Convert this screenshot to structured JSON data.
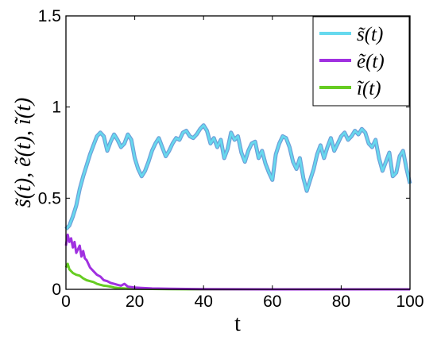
{
  "chart_data": {
    "type": "line",
    "xlabel": "t",
    "ylabel": "s̃(t), ẽ(t), ĩ(t)",
    "xlim": [
      0,
      100
    ],
    "ylim": [
      0,
      1.5
    ],
    "x_ticks": [
      "0",
      "20",
      "40",
      "60",
      "80",
      "100"
    ],
    "y_ticks": [
      "0",
      "0.5",
      "1",
      "1.5"
    ],
    "grid": false,
    "legend_position": "top-right",
    "series": [
      {
        "name": "s̃(t)",
        "color": "#66d9ee",
        "shadow_color": "#6f9fd8",
        "x": [
          0,
          1,
          2,
          3,
          4,
          5,
          6,
          7,
          8,
          9,
          10,
          11,
          12,
          13,
          14,
          15,
          16,
          17,
          18,
          19,
          20,
          21,
          22,
          23,
          24,
          25,
          26,
          27,
          28,
          29,
          30,
          31,
          32,
          33,
          34,
          35,
          36,
          37,
          38,
          39,
          40,
          41,
          42,
          43,
          44,
          45,
          46,
          47,
          48,
          49,
          50,
          51,
          52,
          53,
          54,
          55,
          56,
          57,
          58,
          59,
          60,
          61,
          62,
          63,
          64,
          65,
          66,
          67,
          68,
          69,
          70,
          71,
          72,
          73,
          74,
          75,
          76,
          77,
          78,
          79,
          80,
          81,
          82,
          83,
          84,
          85,
          86,
          87,
          88,
          89,
          90,
          91,
          92,
          93,
          94,
          95,
          96,
          97,
          98,
          99,
          100
        ],
        "values": [
          0.33,
          0.35,
          0.4,
          0.46,
          0.55,
          0.62,
          0.68,
          0.74,
          0.79,
          0.84,
          0.86,
          0.84,
          0.76,
          0.81,
          0.85,
          0.82,
          0.78,
          0.8,
          0.85,
          0.82,
          0.72,
          0.66,
          0.62,
          0.65,
          0.7,
          0.76,
          0.8,
          0.83,
          0.78,
          0.73,
          0.76,
          0.8,
          0.83,
          0.82,
          0.86,
          0.87,
          0.84,
          0.83,
          0.85,
          0.88,
          0.9,
          0.87,
          0.8,
          0.83,
          0.78,
          0.82,
          0.72,
          0.77,
          0.86,
          0.82,
          0.84,
          0.75,
          0.7,
          0.76,
          0.8,
          0.81,
          0.72,
          0.76,
          0.69,
          0.64,
          0.6,
          0.74,
          0.8,
          0.84,
          0.83,
          0.78,
          0.7,
          0.66,
          0.72,
          0.61,
          0.54,
          0.6,
          0.66,
          0.74,
          0.79,
          0.72,
          0.78,
          0.83,
          0.76,
          0.8,
          0.84,
          0.86,
          0.82,
          0.84,
          0.87,
          0.85,
          0.88,
          0.86,
          0.8,
          0.78,
          0.82,
          0.72,
          0.65,
          0.7,
          0.75,
          0.62,
          0.64,
          0.73,
          0.76,
          0.66,
          0.58
        ]
      },
      {
        "name": "ẽ(t)",
        "color": "#a030e0",
        "x": [
          0,
          0.5,
          1,
          1.5,
          2,
          2.5,
          3,
          3.5,
          4,
          4.5,
          5,
          5.5,
          6,
          7,
          8,
          9,
          10,
          11,
          12,
          13,
          14,
          15,
          16,
          17,
          18,
          20,
          22,
          25,
          30,
          40,
          60,
          80,
          100
        ],
        "values": [
          0.24,
          0.3,
          0.26,
          0.28,
          0.23,
          0.26,
          0.2,
          0.22,
          0.24,
          0.18,
          0.21,
          0.17,
          0.16,
          0.12,
          0.1,
          0.08,
          0.07,
          0.05,
          0.045,
          0.035,
          0.03,
          0.025,
          0.02,
          0.03,
          0.015,
          0.01,
          0.008,
          0.005,
          0.003,
          0.001,
          0.0,
          0.0,
          0.0
        ]
      },
      {
        "name": "ĩ(t)",
        "color": "#66cc22",
        "x": [
          0,
          0.5,
          1,
          1.5,
          2,
          3,
          4,
          5,
          6,
          7,
          8,
          9,
          10,
          11,
          12,
          13,
          14,
          15,
          16,
          18,
          20,
          25,
          30,
          40,
          60,
          80,
          100
        ],
        "values": [
          0.12,
          0.14,
          0.11,
          0.1,
          0.09,
          0.08,
          0.075,
          0.06,
          0.05,
          0.045,
          0.04,
          0.03,
          0.025,
          0.02,
          0.018,
          0.015,
          0.01,
          0.008,
          0.006,
          0.004,
          0.003,
          0.002,
          0.001,
          0.0,
          0.0,
          0.0,
          0.0
        ]
      }
    ]
  }
}
